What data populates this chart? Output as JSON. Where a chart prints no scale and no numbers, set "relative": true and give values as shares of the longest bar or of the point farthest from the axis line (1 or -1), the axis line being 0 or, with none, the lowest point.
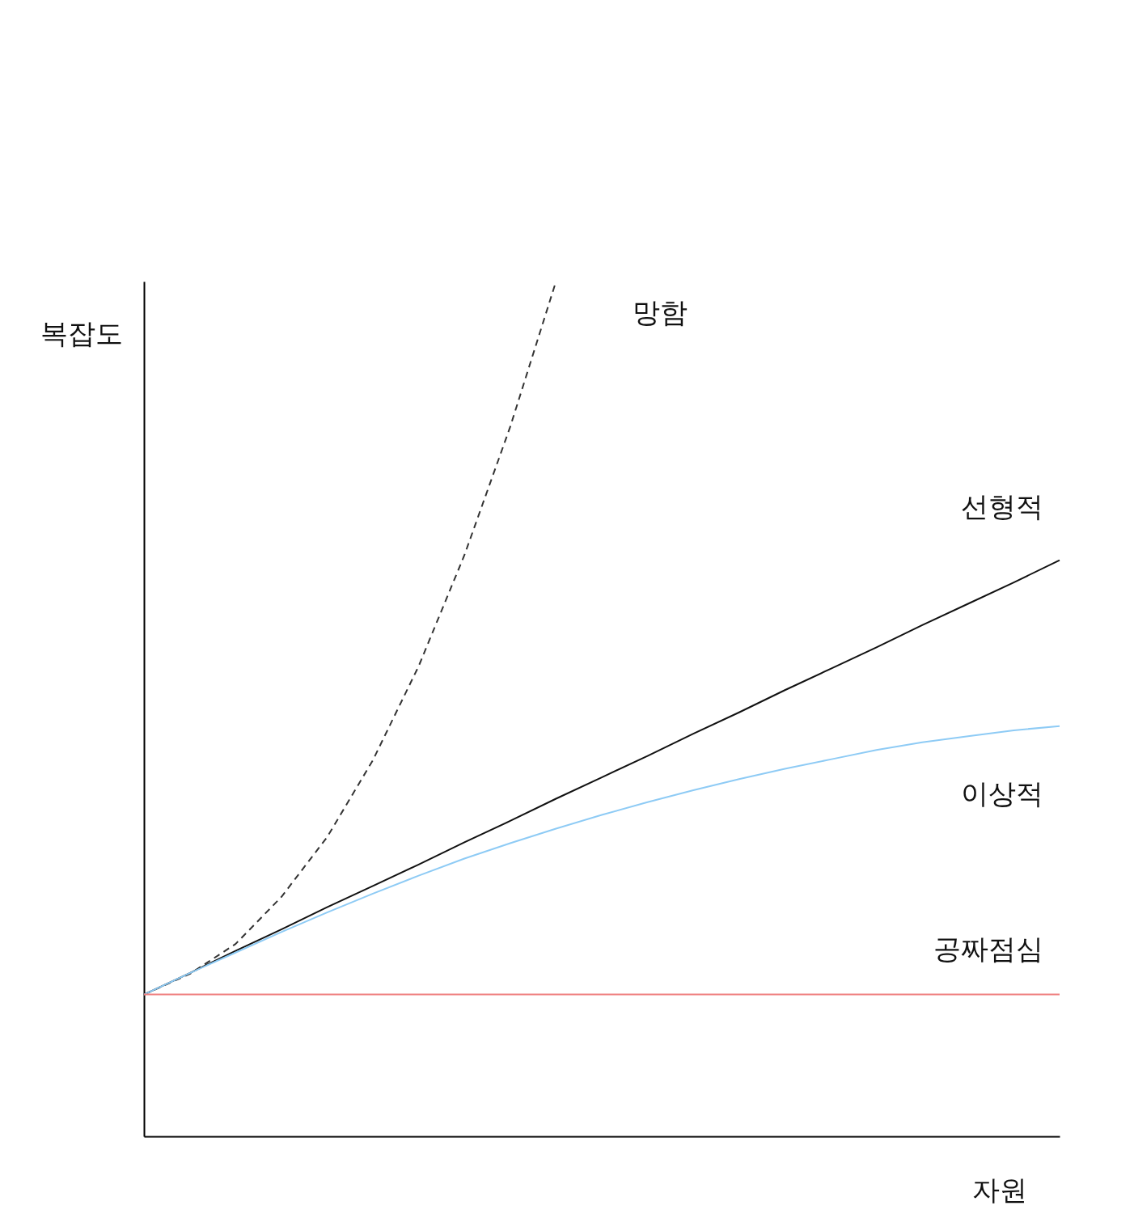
{
  "chart_data": {
    "type": "line",
    "relative": true,
    "xlabel": "자원",
    "ylabel": "복잡도",
    "grid": false,
    "tick_labels": false,
    "marker": "none",
    "categories": [
      null,
      null,
      null,
      null,
      null,
      null,
      null,
      null,
      null,
      null,
      null,
      null,
      null,
      null,
      null,
      null,
      null,
      null,
      null,
      null,
      null
    ],
    "series": [
      {
        "name": "망함",
        "color": "#333333",
        "line_style": "dashed",
        "values": [
          0.166,
          0.19,
          0.225,
          0.28,
          0.35,
          0.44,
          0.55,
          0.68,
          0.83,
          1.0,
          null,
          null,
          null,
          null,
          null,
          null,
          null,
          null,
          null,
          null,
          null
        ]
      },
      {
        "name": "선형적",
        "color": "#111111",
        "line_style": "solid",
        "values": [
          0.166,
          0.191,
          0.217,
          0.242,
          0.268,
          0.293,
          0.318,
          0.344,
          0.369,
          0.395,
          0.42,
          0.445,
          0.471,
          0.496,
          0.522,
          0.547,
          0.572,
          0.598,
          0.623,
          0.648,
          0.674
        ]
      },
      {
        "name": "이상적",
        "color": "#8ecbf5",
        "line_style": "solid",
        "values": [
          0.166,
          0.191,
          0.215,
          0.239,
          0.262,
          0.284,
          0.305,
          0.325,
          0.343,
          0.36,
          0.376,
          0.391,
          0.405,
          0.418,
          0.43,
          0.441,
          0.452,
          0.461,
          0.468,
          0.475,
          0.48
        ]
      },
      {
        "name": "공짜점심",
        "color": "#f08080",
        "line_style": "solid",
        "values": [
          0.166,
          0.166,
          0.166,
          0.166,
          0.166,
          0.166,
          0.166,
          0.166,
          0.166,
          0.166,
          0.166,
          0.166,
          0.166,
          0.166,
          0.166,
          0.166,
          0.166,
          0.166,
          0.166,
          0.166,
          0.166
        ]
      }
    ]
  }
}
